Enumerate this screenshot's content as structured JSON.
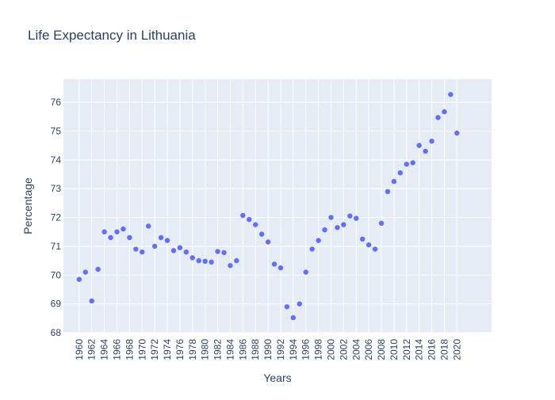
{
  "colors": {
    "plot_background": "#e5ecf6",
    "grid": "#ffffff",
    "marker": "#636efa",
    "text": "#2a3f5f"
  },
  "chart_data": {
    "type": "scatter",
    "title": "Life Expectancy in Lithuania",
    "xlabel": "Years",
    "ylabel": "Percentage",
    "xlim": [
      1957.5,
      2025.5
    ],
    "ylim": [
      68,
      76.8
    ],
    "grid": true,
    "x_ticks": [
      "1960",
      "1962",
      "1964",
      "1966",
      "1968",
      "1970",
      "1972",
      "1974",
      "1976",
      "1978",
      "1980",
      "1982",
      "1984",
      "1986",
      "1988",
      "1990",
      "1992",
      "1994",
      "1996",
      "1998",
      "2000",
      "2002",
      "2004",
      "2006",
      "2008",
      "2010",
      "2012",
      "2014",
      "2016",
      "2018",
      "2020"
    ],
    "y_ticks": [
      68,
      69,
      70,
      71,
      72,
      73,
      74,
      75,
      76
    ],
    "series": [
      {
        "x": [
          1960,
          1961,
          1962,
          1963,
          1964,
          1965,
          1966,
          1967,
          1968,
          1969,
          1970,
          1971,
          1972,
          1973,
          1974,
          1975,
          1976,
          1977,
          1978,
          1979,
          1980,
          1981,
          1982,
          1983,
          1984,
          1985,
          1986,
          1987,
          1988,
          1989,
          1990,
          1991,
          1992,
          1993,
          1994,
          1995,
          1996,
          1997,
          1998,
          1999,
          2000,
          2001,
          2002,
          2003,
          2004,
          2005,
          2006,
          2007,
          2008,
          2009,
          2010,
          2011,
          2012,
          2013,
          2014,
          2015,
          2016,
          2017,
          2018,
          2019,
          2020
        ],
        "y": [
          69.85,
          70.1,
          69.1,
          70.2,
          71.5,
          71.3,
          71.5,
          71.6,
          71.3,
          70.9,
          70.8,
          71.7,
          71.0,
          71.3,
          71.2,
          70.85,
          70.95,
          70.8,
          70.6,
          70.5,
          70.48,
          70.45,
          70.82,
          70.78,
          70.33,
          70.5,
          72.07,
          71.93,
          71.75,
          71.42,
          71.15,
          70.38,
          70.25,
          68.9,
          68.52,
          69.0,
          70.1,
          70.9,
          71.2,
          71.57,
          72.0,
          71.65,
          71.75,
          72.05,
          71.97,
          71.25,
          71.05,
          70.9,
          71.8,
          72.9,
          73.25,
          73.55,
          73.85,
          73.9,
          74.5,
          74.3,
          74.65,
          75.47,
          75.67,
          76.27,
          74.93
        ]
      }
    ]
  }
}
